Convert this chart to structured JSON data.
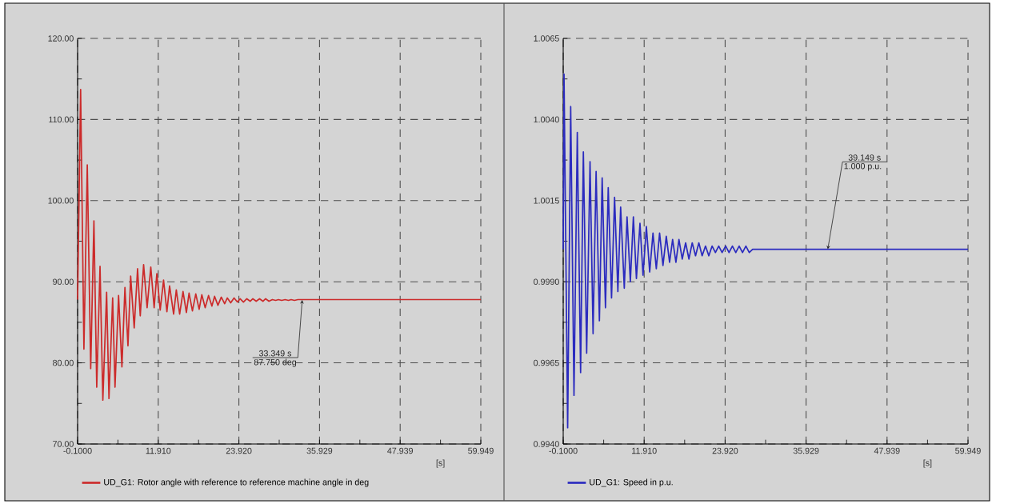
{
  "chart_data": [
    {
      "type": "line",
      "xlabel": "[s]",
      "xlim": [
        -0.1,
        59.949
      ],
      "ylim": [
        70,
        120
      ],
      "xticks": [
        {
          "value": -0.1,
          "label": "-0.1000"
        },
        {
          "value": 5.905,
          "label": null
        },
        {
          "value": 11.91,
          "label": "11.910"
        },
        {
          "value": 17.915,
          "label": null
        },
        {
          "value": 23.92,
          "label": "23.920"
        },
        {
          "value": 29.9245,
          "label": null
        },
        35.929,
        {
          "value": 41.934,
          "label": null
        },
        47.939,
        {
          "value": 53.944,
          "label": null
        },
        59.949
      ],
      "yticks": [
        {
          "value": 70,
          "label": "70.00"
        },
        {
          "value": 75,
          "label": null
        },
        {
          "value": 80,
          "label": "80.00"
        },
        {
          "value": 85,
          "label": null
        },
        {
          "value": 90,
          "label": "90.00"
        },
        {
          "value": 95,
          "label": null
        },
        {
          "value": 100,
          "label": "100.00"
        },
        {
          "value": 105,
          "label": null
        },
        {
          "value": 110,
          "label": "110.00"
        },
        {
          "value": 115,
          "label": null
        },
        {
          "value": 120,
          "label": "120.00"
        }
      ],
      "grid": true,
      "legend": "bottom",
      "x": [
        -0.1,
        0.35,
        0.84,
        1.34,
        1.85,
        2.33,
        2.75,
        3.24,
        3.66,
        4.22,
        4.57,
        5.12,
        5.47,
        6.0,
        6.5,
        6.95,
        7.4,
        7.8,
        8.33,
        8.83,
        9.23,
        9.73,
        10.25,
        10.8,
        11.3,
        11.7,
        12.2,
        12.7,
        13.2,
        13.6,
        14.2,
        14.6,
        15.1,
        15.6,
        16.1,
        16.5,
        17.0,
        17.5,
        18.0,
        18.4,
        18.9,
        19.4,
        19.9,
        20.3,
        20.8,
        21.3,
        21.8,
        22.2,
        22.7,
        23.2,
        23.7,
        24.1,
        24.6,
        25.1,
        25.6,
        26.0,
        26.5,
        27.0,
        27.5,
        27.9,
        28.4,
        28.9,
        29.4,
        29.8,
        30.3,
        30.8,
        31.3,
        31.7,
        32.2,
        32.7,
        33.3,
        59.949
      ],
      "series": [
        {
          "name": "UD_G1: Rotor angle with reference to reference machine angle in deg",
          "color": "#cc2b2b",
          "values": [
            87.8,
            113.7,
            81.7,
            104.4,
            79.3,
            97.5,
            77.0,
            91.9,
            75.4,
            88.7,
            75.6,
            88.0,
            77.0,
            88.3,
            79.5,
            89.3,
            82.1,
            90.7,
            84.3,
            91.6,
            85.8,
            92.1,
            86.8,
            91.8,
            86.8,
            91.0,
            86.5,
            90.2,
            86.3,
            89.5,
            86.0,
            89.0,
            86.0,
            88.8,
            86.2,
            88.6,
            86.4,
            88.5,
            86.6,
            88.4,
            86.8,
            88.3,
            87.0,
            88.2,
            87.1,
            88.1,
            87.3,
            88.0,
            87.4,
            88.0,
            87.5,
            87.9,
            87.5,
            87.9,
            87.6,
            87.9,
            87.6,
            87.9,
            87.6,
            87.9,
            87.6,
            87.8,
            87.7,
            87.8,
            87.7,
            87.8,
            87.7,
            87.8,
            87.7,
            87.8,
            87.8,
            87.8
          ]
        }
      ],
      "annotations": [
        {
          "text": "33.349 s",
          "x": 33.349,
          "y": 87.75
        },
        "87.750 deg"
      ]
    },
    {
      "type": "line",
      "xlabel": "[s]",
      "xlim": [
        -0.1,
        59.949
      ],
      "ylim": [
        0.994,
        1.0065
      ],
      "xticks": [
        {
          "value": -0.1,
          "label": "-0.1000"
        },
        {
          "value": 5.905,
          "label": null
        },
        {
          "value": 11.91,
          "label": "11.910"
        },
        {
          "value": 17.915,
          "label": null
        },
        {
          "value": 23.92,
          "label": "23.920"
        },
        {
          "value": 29.9245,
          "label": null
        },
        35.929,
        {
          "value": 41.934,
          "label": null
        },
        47.939,
        {
          "value": 53.944,
          "label": null
        },
        59.949
      ],
      "yticks": [
        {
          "value": 0.994,
          "label": "0.9940"
        },
        {
          "value": 0.99525,
          "label": null
        },
        0.9965,
        {
          "value": 0.99775,
          "label": null
        },
        {
          "value": 0.999,
          "label": "0.9990"
        },
        {
          "value": 1.00025,
          "label": null
        },
        1.0015,
        {
          "value": 1.00275,
          "label": null
        },
        {
          "value": 1.004,
          "label": "1.0040"
        },
        {
          "value": 1.00525,
          "label": null
        },
        1.0065
      ],
      "grid": true,
      "legend": "bottom",
      "x": [
        -0.1,
        0.02,
        0.56,
        1.01,
        1.5,
        1.99,
        2.48,
        2.89,
        3.38,
        3.88,
        4.33,
        4.78,
        5.27,
        5.68,
        6.17,
        6.58,
        7.07,
        7.52,
        8.01,
        8.42,
        8.96,
        9.37,
        9.86,
        10.31,
        10.76,
        11.29,
        11.74,
        12.24,
        12.73,
        13.22,
        13.71,
        14.2,
        14.7,
        15.19,
        15.68,
        16.13,
        16.62,
        17.07,
        17.56,
        18.06,
        18.55,
        19.04,
        19.53,
        20.02,
        20.51,
        21.01,
        21.5,
        21.99,
        22.48,
        22.97,
        23.47,
        24.0,
        24.5,
        25.0,
        25.5,
        26.0,
        26.5,
        27.0,
        27.5,
        28.0,
        59.949
      ],
      "series": [
        {
          "name": "UD_G1: Speed in p.u.",
          "color": "#2b2bbf",
          "values": [
            1.0,
            1.0054,
            0.9945,
            1.0044,
            0.9955,
            1.0036,
            0.9962,
            1.003,
            0.9968,
            1.0027,
            0.9974,
            1.0024,
            0.9978,
            1.0022,
            0.9982,
            1.0019,
            0.9985,
            1.0016,
            0.9987,
            1.0013,
            0.9988,
            1.001,
            0.999,
            1.001,
            0.9991,
            1.0008,
            0.9992,
            1.0007,
            0.9993,
            1.0005,
            0.9994,
            1.0005,
            0.9995,
            1.0004,
            0.9996,
            1.0003,
            0.9996,
            1.0003,
            0.9997,
            1.0002,
            0.9997,
            1.0002,
            0.9998,
            1.0002,
            0.9998,
            1.0001,
            0.9998,
            1.0001,
            0.9999,
            1.0001,
            0.9999,
            1.0001,
            0.9999,
            1.0001,
            0.9999,
            1.0001,
            0.9999,
            1.0001,
            0.9999,
            1.0,
            1.0
          ]
        }
      ],
      "annotations": [
        {
          "text": "39.149 s",
          "x": 39.149,
          "y": 1.0
        },
        "1.000 p.u."
      ]
    }
  ]
}
